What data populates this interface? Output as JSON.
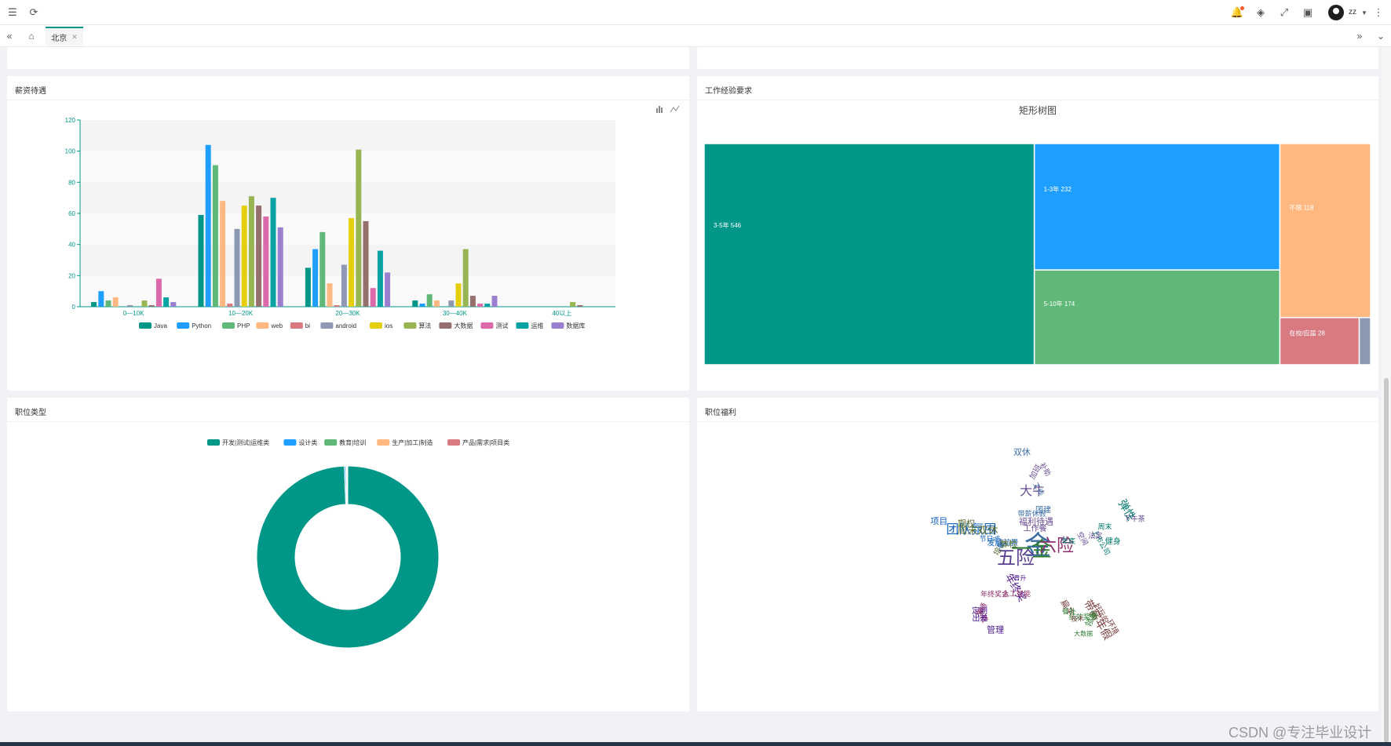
{
  "user": {
    "name": "zz"
  },
  "tabs": [
    {
      "label": "北京"
    }
  ],
  "cards": {
    "salary": {
      "title": "薪资待遇"
    },
    "experience": {
      "title": "工作经验要求",
      "chart_title": "矩形树图"
    },
    "job_type": {
      "title": "职位类型"
    },
    "welfare": {
      "title": "职位福利"
    }
  },
  "colors": {
    "Java": "#009688",
    "Python": "#1e9fff",
    "PHP": "#5fb878",
    "web": "#ffb980",
    "bi": "#d87a80",
    "android": "#8d98b3",
    "ios": "#e5cf0d",
    "算法": "#97b552",
    "大数据": "#95706d",
    "测试": "#dc69aa",
    "运维": "#07a2a4",
    "数据库": "#9a7fd1"
  },
  "watermark": "CSDN @专注毕业设计",
  "chart_data": [
    {
      "type": "bar",
      "categories": [
        "0—10K",
        "10—20K",
        "20—30K",
        "30—40K",
        "40以上"
      ],
      "ylim": [
        0,
        120
      ],
      "yticks": [
        0,
        20,
        40,
        60,
        80,
        100,
        120
      ],
      "grid": true,
      "legend_position": "bottom",
      "series": [
        {
          "name": "Java",
          "values": [
            3,
            59,
            25,
            4,
            0
          ]
        },
        {
          "name": "Python",
          "values": [
            10,
            104,
            37,
            2,
            0
          ]
        },
        {
          "name": "PHP",
          "values": [
            4,
            91,
            48,
            8,
            0
          ]
        },
        {
          "name": "web",
          "values": [
            6,
            68,
            15,
            4,
            0
          ]
        },
        {
          "name": "bi",
          "values": [
            0,
            2,
            1,
            0,
            0
          ]
        },
        {
          "name": "android",
          "values": [
            1,
            50,
            27,
            4,
            0
          ]
        },
        {
          "name": "ios",
          "values": [
            0,
            65,
            57,
            15,
            0
          ]
        },
        {
          "name": "算法",
          "values": [
            4,
            71,
            101,
            37,
            3
          ]
        },
        {
          "name": "大数据",
          "values": [
            1,
            65,
            55,
            7,
            1
          ]
        },
        {
          "name": "测试",
          "values": [
            18,
            58,
            12,
            2,
            0
          ]
        },
        {
          "name": "运维",
          "values": [
            6,
            70,
            36,
            2,
            0
          ]
        },
        {
          "name": "数据库",
          "values": [
            3,
            51,
            22,
            7,
            0
          ]
        }
      ]
    },
    {
      "type": "treemap",
      "title": "矩形树图",
      "items": [
        {
          "name": "3-5年",
          "value": 546,
          "color": "#009688"
        },
        {
          "name": "1-3年",
          "value": 232,
          "color": "#1e9fff"
        },
        {
          "name": "5-10年",
          "value": 174,
          "color": "#5fb878"
        },
        {
          "name": "不限",
          "value": 118,
          "color": "#ffb980"
        },
        {
          "name": "在校/应届",
          "value": 28,
          "color": "#d87a80"
        },
        {
          "name": "",
          "value": 4,
          "color": "#8d98b3"
        }
      ]
    },
    {
      "type": "pie",
      "donut": true,
      "legend_position": "top",
      "series": [
        {
          "name": "开发|测试|运维类",
          "value": 1175,
          "color": "#009688"
        },
        {
          "name": "设计类",
          "value": 3,
          "color": "#1e9fff"
        },
        {
          "name": "教育|培训",
          "value": 2,
          "color": "#5fb878"
        },
        {
          "name": "生产|加工|制造",
          "value": 1,
          "color": "#ffb980"
        },
        {
          "name": "产品|需求|项目类",
          "value": 1,
          "color": "#d87a80"
        }
      ]
    },
    {
      "type": "wordcloud",
      "shape": "star",
      "words": [
        "金",
        "五险",
        "一金",
        "六险",
        "团队氛围",
        "大牛",
        "弹性",
        "带薪年假",
        "年终奖",
        "周末双休",
        "双休",
        "下午茶",
        "绩效奖金",
        "年终奖金",
        "发展前景",
        "福利待遇",
        "上市公司",
        "技术",
        "晋升",
        "期权",
        "工作",
        "空间",
        "领导",
        "免费",
        "节日",
        "补助",
        "周末",
        "扁平",
        "管理",
        "培训",
        "团建",
        "AI",
        "大数据",
        "人工智能",
        "股票",
        "工作餐",
        "年底",
        "好玩的",
        "定期",
        "体检",
        "带薪休假",
        "法定",
        "餐补",
        "交通",
        "项目",
        "加班",
        "健身",
        "环境",
        "出差"
      ]
    }
  ]
}
